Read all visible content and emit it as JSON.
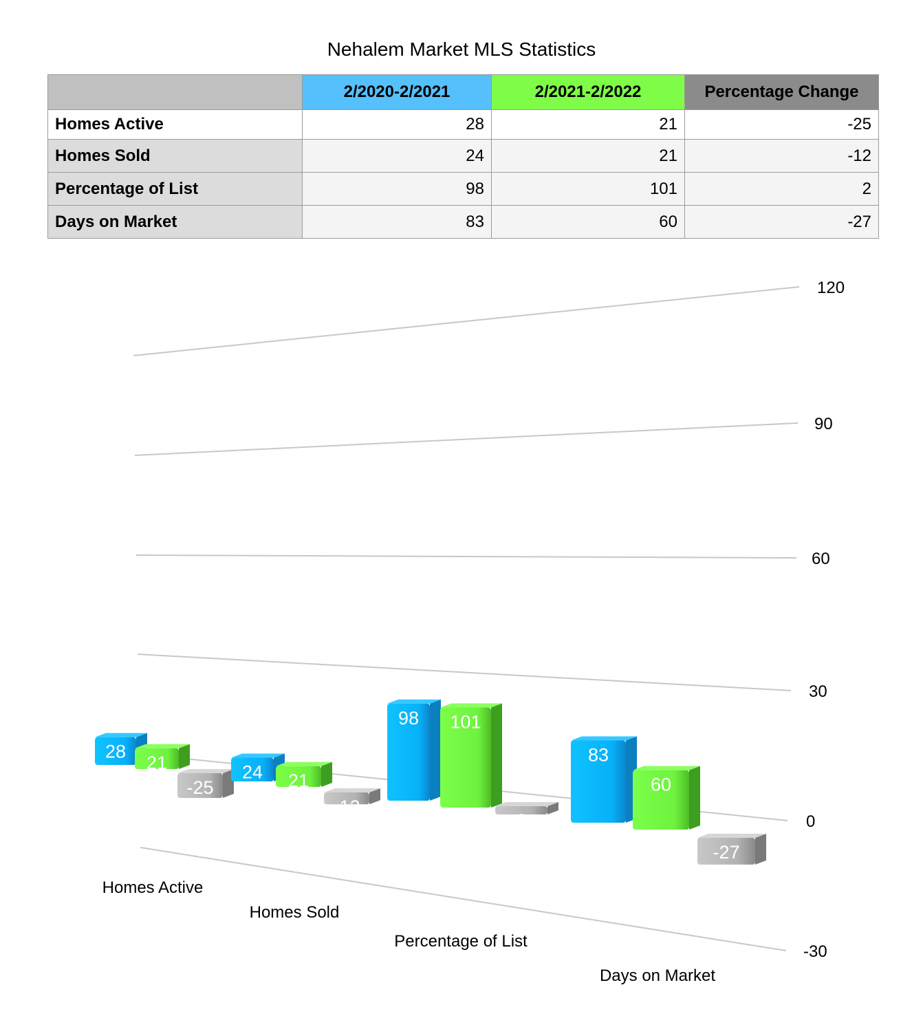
{
  "title": "Nehalem Market MLS Statistics",
  "table": {
    "corner": "",
    "headers": [
      "2/2020-2/2021",
      "2/2021-2/2022",
      "Percentage Change"
    ],
    "rows": [
      {
        "label": "Homes Active",
        "values": [
          "28",
          "21",
          "-25"
        ]
      },
      {
        "label": "Homes Sold",
        "values": [
          "24",
          "21",
          "-12"
        ]
      },
      {
        "label": "Percentage of List",
        "values": [
          "98",
          "101",
          "2"
        ]
      },
      {
        "label": "Days on Market",
        "values": [
          "83",
          "60",
          "-27"
        ]
      }
    ]
  },
  "chart_data": {
    "type": "bar",
    "style": "3d-perspective",
    "categories": [
      "Homes Active",
      "Homes Sold",
      "Percentage of List",
      "Days on Market"
    ],
    "series": [
      {
        "name": "2/2020-2/2021",
        "values": [
          28,
          24,
          98,
          83
        ],
        "color": "#0db7fb"
      },
      {
        "name": "2/2021-2/2022",
        "values": [
          21,
          21,
          101,
          60
        ],
        "color": "#6cf43c"
      },
      {
        "name": "Percentage Change",
        "values": [
          -25,
          -12,
          2,
          -27
        ],
        "color": "#b4b4b4"
      }
    ],
    "y_ticks": [
      120,
      90,
      60,
      30,
      0,
      -30
    ],
    "ylim": [
      -30,
      120
    ],
    "grid": true,
    "legend": "none"
  }
}
